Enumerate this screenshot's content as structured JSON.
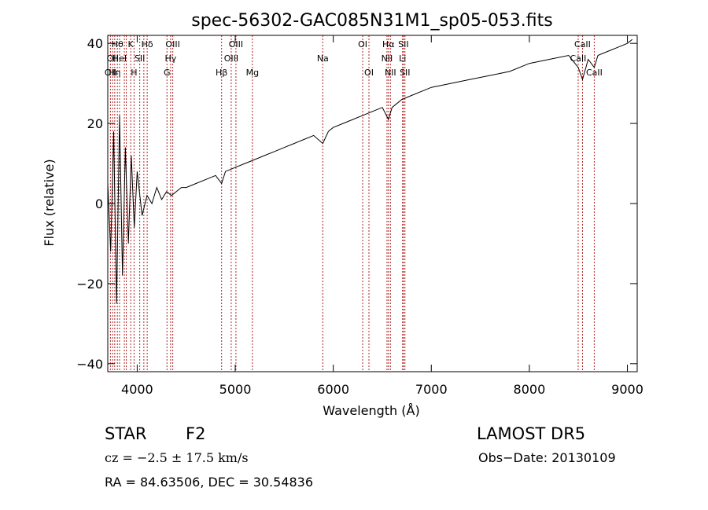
{
  "chart_data": {
    "type": "line",
    "title": "spec-56302-GAC085N31M1_sp05-053.fits",
    "xlabel": "Wavelength (Å)",
    "ylabel": "Flux (relative)",
    "xlim": [
      3700,
      9100
    ],
    "ylim": [
      -42,
      42
    ],
    "xticks": [
      4000,
      5000,
      6000,
      7000,
      8000,
      9000
    ],
    "yticks": [
      -40,
      -20,
      0,
      20,
      40
    ],
    "grid": false,
    "line_color": "#000000",
    "marker_color": "#b22222",
    "series": [
      {
        "x": [
          3700,
          3730,
          3760,
          3790,
          3820,
          3850,
          3880,
          3910,
          3940,
          3970,
          4000,
          4050,
          4100,
          4150,
          4200,
          4250,
          4300,
          4350,
          4400,
          4450,
          4500,
          4600,
          4700,
          4800,
          4861,
          4900,
          5000,
          5100,
          5200,
          5300,
          5400,
          5500,
          5600,
          5700,
          5800,
          5893,
          5950,
          6000,
          6100,
          6200,
          6300,
          6400,
          6500,
          6563,
          6600,
          6700,
          6800,
          6900,
          7000,
          7200,
          7400,
          7600,
          7800,
          8000,
          8200,
          8400,
          8498,
          8542,
          8600,
          8662,
          8700,
          8800,
          8900,
          9000,
          9050
        ],
        "y": [
          5,
          -12,
          18,
          -25,
          22,
          -18,
          14,
          -10,
          12,
          -6,
          8,
          -3,
          2,
          0,
          4,
          1,
          3,
          2,
          3,
          4,
          4,
          5,
          6,
          7,
          5,
          8,
          9,
          10,
          11,
          12,
          13,
          14,
          15,
          16,
          17,
          15,
          18,
          19,
          20,
          21,
          22,
          23,
          24,
          21,
          24,
          26,
          27,
          28,
          29,
          30,
          31,
          32,
          33,
          35,
          36,
          37,
          34,
          31,
          36,
          34,
          37,
          38,
          39,
          40,
          41
        ]
      }
    ],
    "lines": [
      {
        "x": 3727,
        "label": "OII",
        "row": 2
      },
      {
        "x": 3750,
        "label": "OII",
        "row": 1
      },
      {
        "x": 3771,
        "label": "Hη",
        "row": 2
      },
      {
        "x": 3798,
        "label": "Hθ",
        "row": 0
      },
      {
        "x": 3820,
        "label": "HeI",
        "row": 1
      },
      {
        "x": 3869,
        "label": "",
        "row": 0
      },
      {
        "x": 3889,
        "label": "",
        "row": 0
      },
      {
        "x": 3934,
        "label": "K",
        "row": 0
      },
      {
        "x": 3968,
        "label": "H",
        "row": 2
      },
      {
        "x": 4026,
        "label": "SII",
        "row": 1
      },
      {
        "x": 4068,
        "label": "",
        "row": 0
      },
      {
        "x": 4102,
        "label": "Hδ",
        "row": 0
      },
      {
        "x": 4304,
        "label": "G",
        "row": 2
      },
      {
        "x": 4341,
        "label": "Hγ",
        "row": 1
      },
      {
        "x": 4363,
        "label": "OIII",
        "row": 0
      },
      {
        "x": 4861,
        "label": "Hβ",
        "row": 2
      },
      {
        "x": 4959,
        "label": "OIII",
        "row": 1
      },
      {
        "x": 5007,
        "label": "OIII",
        "row": 0
      },
      {
        "x": 5175,
        "label": "Mg",
        "row": 2
      },
      {
        "x": 5893,
        "label": "Na",
        "row": 1
      },
      {
        "x": 6300,
        "label": "OI",
        "row": 0
      },
      {
        "x": 6364,
        "label": "OI",
        "row": 2
      },
      {
        "x": 6548,
        "label": "NII",
        "row": 1
      },
      {
        "x": 6563,
        "label": "Hα",
        "row": 0
      },
      {
        "x": 6583,
        "label": "NII",
        "row": 2
      },
      {
        "x": 6707,
        "label": "Li",
        "row": 1
      },
      {
        "x": 6716,
        "label": "SII",
        "row": 0
      },
      {
        "x": 6731,
        "label": "SII",
        "row": 2
      },
      {
        "x": 8498,
        "label": "CaII",
        "row": 1
      },
      {
        "x": 8542,
        "label": "CaII",
        "row": 0
      },
      {
        "x": 8662,
        "label": "CaII",
        "row": 2
      }
    ]
  },
  "info": {
    "object_class": "STAR",
    "subclass": "F2",
    "survey": "LAMOST DR5",
    "velocity": "cz = −2.5 ± 17.5 km/s",
    "obs_date": "Obs−Date: 20130109",
    "coords": "RA =  84.63506, DEC =  30.54836"
  }
}
